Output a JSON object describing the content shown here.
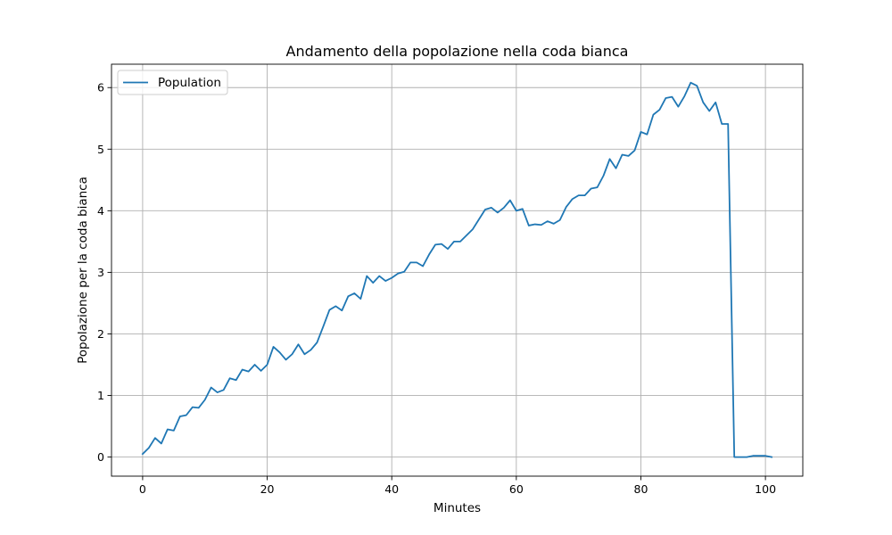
{
  "chart_data": {
    "type": "line",
    "title": "Andamento della popolazione nella coda bianca",
    "xlabel": "Minutes",
    "ylabel": "Popolazione per la coda bianca",
    "xlim": [
      -5,
      106
    ],
    "ylim": [
      -0.31,
      6.38
    ],
    "grid": true,
    "legend_position": "top-left",
    "x_ticks": [
      0,
      20,
      40,
      60,
      80,
      100
    ],
    "y_ticks": [
      0,
      1,
      2,
      3,
      4,
      5,
      6
    ],
    "series": [
      {
        "name": "Population",
        "color": "#1f77b4",
        "x": [
          0,
          1,
          2,
          3,
          4,
          5,
          6,
          7,
          8,
          9,
          10,
          11,
          12,
          13,
          14,
          15,
          16,
          17,
          18,
          19,
          20,
          21,
          22,
          23,
          24,
          25,
          26,
          27,
          28,
          29,
          30,
          31,
          32,
          33,
          34,
          35,
          36,
          37,
          38,
          39,
          40,
          41,
          42,
          43,
          44,
          45,
          46,
          47,
          48,
          49,
          50,
          51,
          52,
          53,
          54,
          55,
          56,
          57,
          58,
          59,
          60,
          61,
          62,
          63,
          64,
          65,
          66,
          67,
          68,
          69,
          70,
          71,
          72,
          73,
          74,
          75,
          76,
          77,
          78,
          79,
          80,
          81,
          82,
          83,
          84,
          85,
          86,
          87,
          88,
          89,
          90,
          91,
          92,
          93,
          94,
          95,
          96,
          97,
          98,
          99,
          100,
          101
        ],
        "y": [
          0.05,
          0.15,
          0.31,
          0.22,
          0.45,
          0.43,
          0.66,
          0.68,
          0.81,
          0.8,
          0.93,
          1.13,
          1.05,
          1.09,
          1.28,
          1.25,
          1.42,
          1.39,
          1.5,
          1.4,
          1.5,
          1.79,
          1.7,
          1.58,
          1.67,
          1.83,
          1.67,
          1.74,
          1.86,
          2.12,
          2.39,
          2.45,
          2.38,
          2.61,
          2.66,
          2.57,
          2.94,
          2.83,
          2.94,
          2.86,
          2.91,
          2.98,
          3.01,
          3.16,
          3.16,
          3.1,
          3.29,
          3.45,
          3.46,
          3.38,
          3.5,
          3.5,
          3.6,
          3.7,
          3.86,
          4.02,
          4.05,
          3.97,
          4.05,
          4.17,
          4.0,
          4.03,
          3.76,
          3.78,
          3.77,
          3.83,
          3.79,
          3.85,
          4.06,
          4.19,
          4.25,
          4.25,
          4.36,
          4.38,
          4.57,
          4.84,
          4.69,
          4.91,
          4.89,
          4.98,
          5.28,
          5.24,
          5.56,
          5.64,
          5.83,
          5.85,
          5.69,
          5.86,
          6.08,
          6.03,
          5.76,
          5.62,
          5.76,
          5.41,
          5.41,
          0.0,
          0.0,
          0.0,
          0.02,
          0.02,
          0.02,
          0.0
        ]
      }
    ]
  }
}
